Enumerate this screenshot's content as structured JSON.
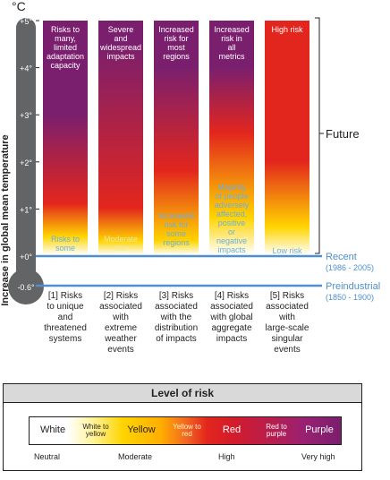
{
  "chart_data": {
    "type": "heatmap",
    "y_unit": "°C",
    "ylabel": "Increase in global mean temperature",
    "ylim": [
      -0.6,
      5
    ],
    "y_ticks": [
      "+5°",
      "+4°",
      "+3°",
      "+2°",
      "+1°",
      "+0°",
      "-0.6°"
    ],
    "future_label": "Future",
    "reference_lines": [
      {
        "name": "Recent",
        "period": "(1986 - 2005)",
        "value": 0
      },
      {
        "name": "Preindustrial",
        "period": "(1850 - 1900)",
        "value": -0.6
      }
    ],
    "categories": [
      {
        "label": "[1] Risks to unique and threatened systems",
        "top_text": "Risks to many, limited adaptation capacity",
        "lower_text": "Risks to some",
        "levels": [
          {
            "t": 0,
            "level": "white"
          },
          {
            "t": 0.4,
            "level": "yellow"
          },
          {
            "t": 1.1,
            "level": "red"
          },
          {
            "t": 3.0,
            "level": "purple"
          }
        ]
      },
      {
        "label": "[2] Risks associated with extreme weather events",
        "top_text": "Severe and widespread impacts",
        "lower_text": "Moderate risk",
        "levels": [
          {
            "t": 0,
            "level": "white"
          },
          {
            "t": 0.3,
            "level": "yellow"
          },
          {
            "t": 1.0,
            "level": "red"
          },
          {
            "t": 4.5,
            "level": "purple"
          }
        ]
      },
      {
        "label": "[3] Risks associated with the distribution of impacts",
        "top_text": "Increased risk for most regions",
        "lower_text": "Increased risk for some regions",
        "levels": [
          {
            "t": 0,
            "level": "white"
          },
          {
            "t": 0.3,
            "level": "yellow"
          },
          {
            "t": 1.8,
            "level": "red"
          },
          {
            "t": 4.0,
            "level": "purple"
          }
        ]
      },
      {
        "label": "[4] Risks associated with global aggregate impacts",
        "top_text": "Increased risk in all metrics",
        "lower_text": "Majority of people adversely affected, positive or negative impacts",
        "levels": [
          {
            "t": 0,
            "level": "white"
          },
          {
            "t": 0.8,
            "level": "yellow"
          },
          {
            "t": 2.6,
            "level": "red"
          },
          {
            "t": 4.0,
            "level": "purple"
          }
        ]
      },
      {
        "label": "[5] Risks associated with large-scale singular events",
        "top_text": "High risk",
        "lower_text": "Low risk",
        "levels": [
          {
            "t": 0,
            "level": "white"
          },
          {
            "t": 0.6,
            "level": "yellow"
          },
          {
            "t": 2.0,
            "level": "red"
          },
          {
            "t": 4.2,
            "level": "red"
          }
        ]
      }
    ],
    "legend": {
      "title": "Level of risk",
      "items": [
        "White",
        "White to yellow",
        "Yellow",
        "Yellow to red",
        "Red",
        "Red to purple",
        "Purple"
      ],
      "scale": [
        "Neutral",
        "Moderate",
        "High",
        "Very high"
      ]
    }
  },
  "colors": {
    "white": "#ffffff",
    "yellow": "#ffd400",
    "red": "#e3261d",
    "purple": "#7a1f6e",
    "reference_line": "#4f8fcd",
    "thermometer": "#636466"
  }
}
